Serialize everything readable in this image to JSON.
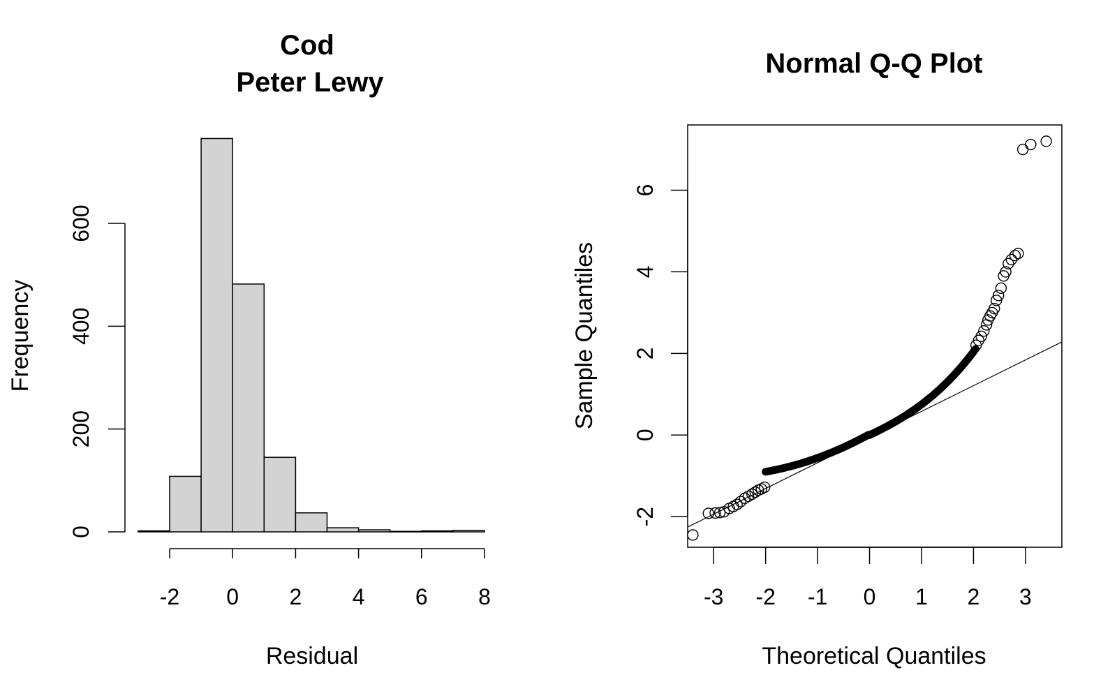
{
  "chart_data": [
    {
      "type": "bar",
      "title": "Cod",
      "subtitle": "Peter Lewy",
      "xlabel": "Residual",
      "ylabel": "Frequency",
      "bin_edges": [
        -3,
        -2,
        -1,
        0,
        1,
        2,
        3,
        4,
        5,
        6,
        7,
        8
      ],
      "values": [
        2,
        108,
        765,
        482,
        145,
        37,
        8,
        4,
        1,
        2,
        3
      ],
      "xlim": [
        -2,
        8
      ],
      "ylim": [
        0,
        600
      ],
      "x_ticks": [
        -2,
        0,
        2,
        4,
        6,
        8
      ],
      "y_ticks": [
        0,
        200,
        400,
        600
      ],
      "x_tick_labels": [
        "-2",
        "0",
        "2",
        "4",
        "6",
        "8"
      ],
      "y_tick_labels": [
        "0",
        "200",
        "400",
        "600"
      ],
      "bar_color": "#d3d3d3",
      "grid": false
    },
    {
      "type": "scatter",
      "title": "Normal Q-Q Plot",
      "xlabel": "Theoretical Quantiles",
      "ylabel": "Sample Quantiles",
      "xlim": [
        -3.5,
        3.7
      ],
      "ylim": [
        -2.75,
        7.6
      ],
      "x_ticks": [
        -3,
        -2,
        -1,
        0,
        1,
        2,
        3
      ],
      "y_ticks": [
        -2,
        0,
        2,
        4,
        6
      ],
      "x_tick_labels": [
        "-3",
        "-2",
        "-1",
        "0",
        "1",
        "2",
        "3"
      ],
      "y_tick_labels": [
        "-2",
        "0",
        "2",
        "4",
        "6"
      ],
      "reference_line": {
        "slope": 0.63,
        "intercept": -0.05
      },
      "points": [
        [
          -3.4,
          -2.45
        ],
        [
          -3.1,
          -1.92
        ],
        [
          -2.97,
          -1.91
        ],
        [
          -2.88,
          -1.9
        ],
        [
          -2.8,
          -1.88
        ],
        [
          -2.7,
          -1.8
        ],
        [
          -2.62,
          -1.75
        ],
        [
          -2.55,
          -1.7
        ],
        [
          -2.48,
          -1.63
        ],
        [
          -2.4,
          -1.55
        ],
        [
          -2.33,
          -1.5
        ],
        [
          -2.26,
          -1.45
        ],
        [
          -2.2,
          -1.4
        ],
        [
          -2.14,
          -1.35
        ],
        [
          -2.08,
          -1.32
        ],
        [
          -2.02,
          -1.28
        ],
        [
          2.05,
          2.2
        ],
        [
          2.1,
          2.32
        ],
        [
          2.15,
          2.42
        ],
        [
          2.2,
          2.55
        ],
        [
          2.25,
          2.7
        ],
        [
          2.28,
          2.82
        ],
        [
          2.32,
          2.92
        ],
        [
          2.36,
          3.0
        ],
        [
          2.4,
          3.1
        ],
        [
          2.44,
          3.3
        ],
        [
          2.48,
          3.42
        ],
        [
          2.53,
          3.6
        ],
        [
          2.58,
          3.9
        ],
        [
          2.62,
          4.0
        ],
        [
          2.67,
          4.2
        ],
        [
          2.73,
          4.3
        ],
        [
          2.8,
          4.4
        ],
        [
          2.86,
          4.45
        ],
        [
          2.95,
          7.0
        ],
        [
          3.1,
          7.12
        ],
        [
          3.4,
          7.2
        ]
      ],
      "grid": false
    }
  ]
}
